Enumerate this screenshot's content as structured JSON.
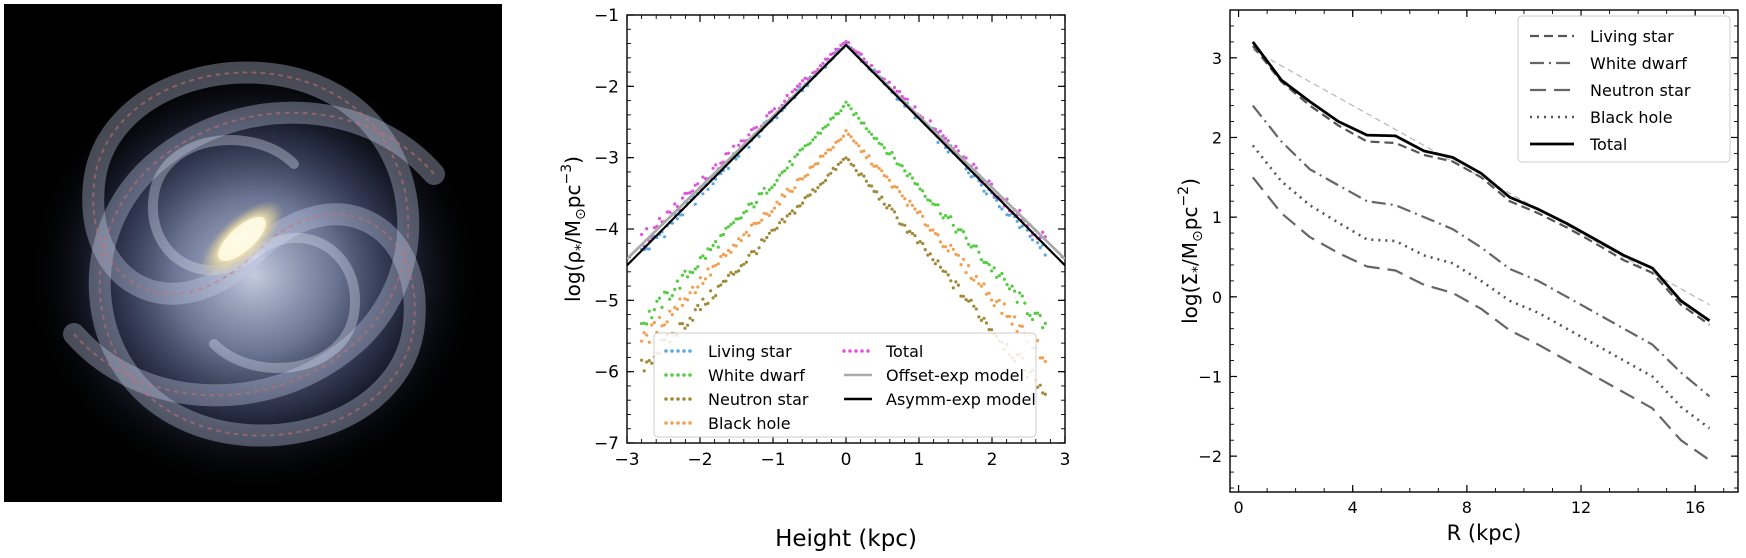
{
  "chart_data": [
    {
      "type": "image",
      "description_free": true
    },
    {
      "type": "scatter",
      "xlabel": "Height (kpc)",
      "ylabel_main": "log(ρ",
      "ylabel_sub": "*",
      "ylabel_mid": "/M",
      "ylabel_sun_sub": "⊙",
      "ylabel_end": "pc",
      "ylabel_sup": "−3",
      "ylabel_close": ")",
      "xlim": [
        -3,
        3
      ],
      "ylim": [
        -7,
        -1
      ],
      "xticks": [
        -3,
        -2,
        -1,
        0,
        1,
        2,
        3
      ],
      "xtick_labels": [
        "−3",
        "−2",
        "−1",
        "0",
        "1",
        "2",
        "3"
      ],
      "yticks": [
        -7,
        -6,
        -5,
        -4,
        -3,
        -2,
        -1
      ],
      "ytick_labels": [
        "−7",
        "−6",
        "−5",
        "−4",
        "−3",
        "−2",
        "−1"
      ],
      "legend_position": "lower-center",
      "series": [
        {
          "name": "Living star",
          "style": "dots",
          "color": "#5da8e0",
          "peak": -1.4,
          "scale_left": 1.05,
          "scale_right": 1.05,
          "x_min": -2.8,
          "x_max": 2.75
        },
        {
          "name": "White dwarf",
          "style": "dots",
          "color": "#55cc44",
          "peak": -2.25,
          "scale_left": 1.1,
          "scale_right": 1.15,
          "x_min": -2.8,
          "x_max": 2.75
        },
        {
          "name": "Neutron star",
          "style": "dots",
          "color": "#a08a3a",
          "peak": -3.0,
          "scale_left": 1.05,
          "scale_right": 1.2,
          "x_min": -2.8,
          "x_max": 2.75
        },
        {
          "name": "Black hole",
          "style": "dots",
          "color": "#f0a050",
          "peak": -2.65,
          "scale_left": 1.05,
          "scale_right": 1.15,
          "x_min": -2.8,
          "x_max": 2.75
        },
        {
          "name": "Total",
          "style": "dots",
          "color": "#dd55dd",
          "peak": -1.37,
          "scale_left": 1.0,
          "scale_right": 1.02,
          "x_min": -2.8,
          "x_max": 2.75
        },
        {
          "name": "Offset-exp model",
          "style": "line",
          "color": "#aaaaaa",
          "peak": -1.42,
          "scale_left": 1.0,
          "scale_right": 1.0,
          "x_min": -3,
          "x_max": 3
        },
        {
          "name": "Asymm-exp model",
          "style": "line",
          "color": "#000000",
          "peak": -1.42,
          "scale_left": 1.03,
          "scale_right": 1.03,
          "x_min": -3,
          "x_max": 3
        }
      ]
    },
    {
      "type": "line",
      "xlabel": "R (kpc)",
      "ylabel_main": "log(Σ",
      "ylabel_sub": "*",
      "ylabel_mid": "/M",
      "ylabel_sun_sub": "⊙",
      "ylabel_end": "pc",
      "ylabel_sup": "−2",
      "ylabel_close": ")",
      "xlim": [
        -0.3,
        17.5
      ],
      "ylim": [
        -2.45,
        3.6
      ],
      "xticks": [
        0,
        4,
        8,
        12,
        16
      ],
      "xtick_labels": [
        "0",
        "4",
        "8",
        "12",
        "16"
      ],
      "yticks": [
        -2,
        -1,
        0,
        1,
        2,
        3
      ],
      "ytick_labels": [
        "−2",
        "−1",
        "0",
        "1",
        "2",
        "3"
      ],
      "legend_position": "top-right",
      "x": [
        0.5,
        1.5,
        2.5,
        3.5,
        4.5,
        5.5,
        6.5,
        7.5,
        8.5,
        9.5,
        10.5,
        11.5,
        12.5,
        13.5,
        14.5,
        15.5,
        16.5
      ],
      "series": [
        {
          "name": "Living star",
          "dash": "9,5",
          "width": 2.2,
          "color": "#555555",
          "values": [
            3.15,
            2.7,
            2.4,
            2.15,
            1.95,
            1.93,
            1.78,
            1.7,
            1.5,
            1.2,
            1.05,
            0.87,
            0.67,
            0.46,
            0.3,
            -0.1,
            -0.35
          ]
        },
        {
          "name": "White dwarf",
          "dash": "14,5,2,5",
          "width": 2.2,
          "color": "#666666",
          "values": [
            2.4,
            1.95,
            1.6,
            1.4,
            1.2,
            1.15,
            1.0,
            0.85,
            0.62,
            0.35,
            0.2,
            0.0,
            -0.2,
            -0.4,
            -0.6,
            -0.95,
            -1.25
          ]
        },
        {
          "name": "Neutron star",
          "dash": "16,8",
          "width": 2.2,
          "color": "#666666",
          "values": [
            1.5,
            1.05,
            0.75,
            0.55,
            0.38,
            0.33,
            0.15,
            0.05,
            -0.15,
            -0.42,
            -0.6,
            -0.8,
            -1.0,
            -1.2,
            -1.4,
            -1.8,
            -2.05
          ]
        },
        {
          "name": "Black hole",
          "dash": "2,5",
          "width": 2.6,
          "color": "#555555",
          "values": [
            1.9,
            1.45,
            1.15,
            0.93,
            0.72,
            0.7,
            0.52,
            0.42,
            0.2,
            -0.05,
            -0.2,
            -0.4,
            -0.6,
            -0.8,
            -1.0,
            -1.38,
            -1.65
          ]
        },
        {
          "name": "Total",
          "dash": "",
          "width": 2.8,
          "color": "#000000",
          "values": [
            3.2,
            2.72,
            2.45,
            2.2,
            2.03,
            2.02,
            1.83,
            1.75,
            1.55,
            1.25,
            1.1,
            0.92,
            0.72,
            0.52,
            0.36,
            -0.05,
            -0.3
          ]
        }
      ],
      "reference_line": {
        "color": "#bbbbbb",
        "dash": "6,4",
        "x": [
          0.5,
          16.5
        ],
        "values": [
          3.1,
          -0.1
        ]
      }
    }
  ]
}
